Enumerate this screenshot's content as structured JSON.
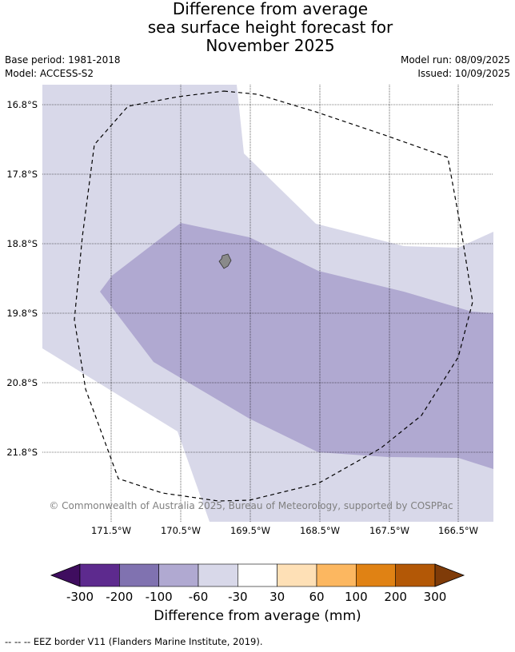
{
  "header": {
    "title_lines": [
      "Difference from average",
      "sea surface height forecast for",
      "November 2025"
    ],
    "base_period": "Base period: 1981-2018",
    "model": "Model: ACCESS-S2",
    "model_run": "Model run: 08/09/2025",
    "issued": "Issued: 10/09/2025"
  },
  "map": {
    "latitude_labels": [
      "16.8°S",
      "17.8°S",
      "18.8°S",
      "19.8°S",
      "20.8°S",
      "21.8°S"
    ],
    "longitude_labels": [
      "171.5°W",
      "170.5°W",
      "169.5°W",
      "168.5°W",
      "167.5°W",
      "166.5°W"
    ],
    "copyright": "© Commonwealth of Australia 2025, Bureau of Meteorology, supported by COSPPac",
    "colors": {
      "band_minus60_minus30": "#d8d8e9",
      "band_minus100_minus60": "#b0a9d1",
      "land": "#8a8a8a"
    }
  },
  "colorbar": {
    "tick_labels": [
      "-300",
      "-200",
      "-100",
      "-60",
      "-30",
      "30",
      "60",
      "100",
      "200",
      "300"
    ],
    "colors": [
      "#3f0d5f",
      "#5d2a8e",
      "#8072b0",
      "#b0a9d1",
      "#d8d8e9",
      "#ffffff",
      "#fee0b6",
      "#fcb760",
      "#e08214",
      "#b35806",
      "#7f3b08"
    ],
    "label": "Difference from average (mm)"
  },
  "legend": {
    "eez_text": "--  --  -- EEZ border V11 (Flanders Marine Institute, 2019)."
  }
}
